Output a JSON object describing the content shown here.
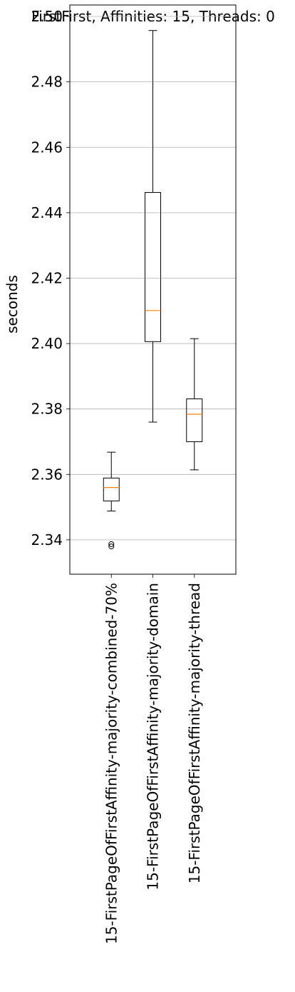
{
  "chart_data": {
    "type": "box",
    "title": "FirstFirst, Affinities: 15, Threads: 0",
    "xlabel": "",
    "ylabel": "seconds",
    "ylim": [
      2.3295,
      2.5035
    ],
    "yticks": [
      2.34,
      2.36,
      2.38,
      2.4,
      2.42,
      2.44,
      2.46,
      2.48,
      2.5
    ],
    "ytick_labels": [
      "2.34",
      "2.36",
      "2.38",
      "2.40",
      "2.42",
      "2.44",
      "2.46",
      "2.48",
      "2.50"
    ],
    "grid": "horizontal",
    "categories": [
      "15-FirstPageOfFirstAffinity-majority-combined-70%",
      "15-FirstPageOfFirstAffinity-majority-domain",
      "15-FirstPageOfFirstAffinity-majority-thread"
    ],
    "boxes": [
      {
        "whisker_low": 2.3488,
        "q1": 2.3519,
        "median": 2.356,
        "q3": 2.3589,
        "whisker_high": 2.3668,
        "outliers": [
          2.338,
          2.3387
        ]
      },
      {
        "whisker_low": 2.376,
        "q1": 2.4006,
        "median": 2.4101,
        "q3": 2.4462,
        "whisker_high": 2.4957,
        "outliers": []
      },
      {
        "whisker_low": 2.3614,
        "q1": 2.37,
        "median": 2.3784,
        "q3": 2.3831,
        "whisker_high": 2.4015,
        "outliers": []
      }
    ],
    "colors": {
      "box": "#000000",
      "median": "#ff7f0e",
      "grid": "#b0b0b0"
    }
  }
}
